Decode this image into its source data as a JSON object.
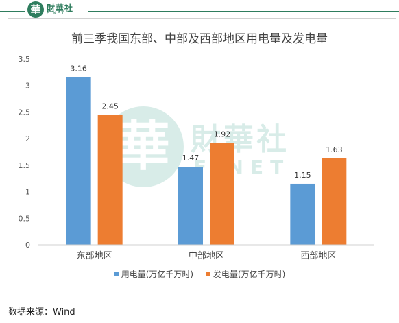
{
  "logo": {
    "glyph": "華",
    "name": "財華社",
    "sub": "FINET"
  },
  "source": "数据来源：Wind",
  "chart_data": {
    "type": "bar",
    "title": "前三季我国东部、中部及西部地区用电量及发电量",
    "categories": [
      "东部地区",
      "中部地区",
      "西部地区"
    ],
    "series": [
      {
        "name": "用电量(万亿千万时)",
        "values": [
          3.16,
          1.47,
          1.15
        ],
        "color": "#5b9bd5"
      },
      {
        "name": "发电量(万亿千万时)",
        "values": [
          2.45,
          1.92,
          1.63
        ],
        "color": "#ed7d31"
      }
    ],
    "ylim": [
      0,
      3.5
    ],
    "yticks": [
      "0",
      "0.5",
      "1",
      "1.5",
      "2",
      "2.5",
      "3",
      "3.5"
    ],
    "data_labels": true,
    "grid": false,
    "legend": "bottom"
  }
}
